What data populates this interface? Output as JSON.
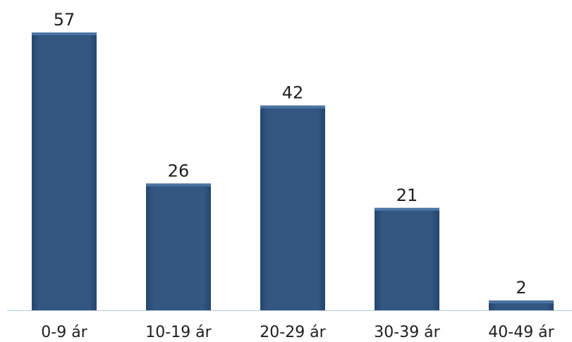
{
  "chart_data": {
    "type": "bar",
    "categories": [
      "0-9 ár",
      "10-19 ár",
      "20-29 ár",
      "30-39 ár",
      "40-49 ár"
    ],
    "values": [
      57,
      26,
      42,
      21,
      2
    ],
    "title": "",
    "xlabel": "",
    "ylabel": "",
    "ylim": [
      0,
      57
    ],
    "grid": false,
    "legend": "none",
    "data_labels": true,
    "colors": {
      "bar": "#335781",
      "bar_top": "#4b74a3",
      "bar_edge": "#24466f",
      "axis": "#b9c8d6",
      "label_bg": "#ffffff",
      "text": "#1f1f1f"
    }
  }
}
